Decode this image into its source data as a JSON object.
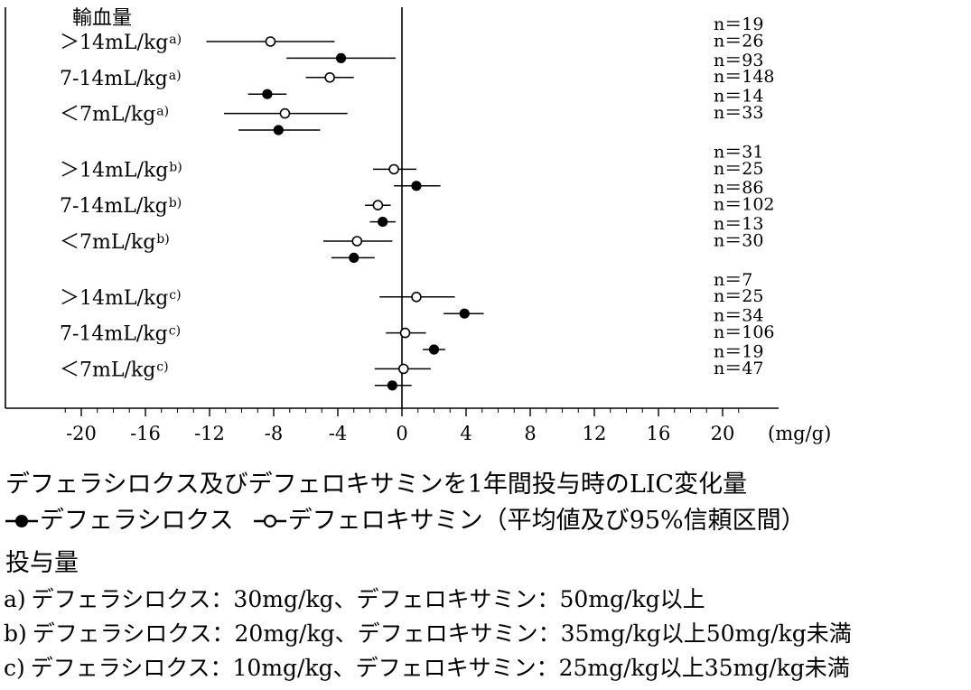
{
  "chart_data": {
    "type": "forest",
    "xlabel": "(mg/g)",
    "xlim": [
      -24,
      22
    ],
    "xticks": [
      -20,
      -16,
      -12,
      -8,
      -4,
      0,
      4,
      8,
      12,
      16,
      20
    ],
    "header_label": "輸血量",
    "series": [
      {
        "name": "デフェラシロクス",
        "marker": "filled-circle"
      },
      {
        "name": "デフェロキサミン",
        "marker": "open-circle"
      }
    ],
    "groups": [
      {
        "label": "＞14mL/kg",
        "sup": "a)",
        "rows": [
          {
            "series": "デフェロキサミン",
            "n": "n＝19",
            "mean": -8.2,
            "lo": -12.2,
            "hi": -4.2
          },
          {
            "series": "デフェラシロクス",
            "n": "n＝26",
            "mean": -3.8,
            "lo": -7.2,
            "hi": -0.4
          }
        ]
      },
      {
        "label": "7-14mL/kg",
        "sup": "a)",
        "rows": [
          {
            "series": "デフェロキサミン",
            "n": "n＝93",
            "mean": -4.5,
            "lo": -6.0,
            "hi": -3.0
          },
          {
            "series": "デフェラシロクス",
            "n": "n＝148",
            "mean": -8.4,
            "lo": -9.6,
            "hi": -7.2
          }
        ]
      },
      {
        "label": "＜7mL/kg",
        "sup": "a)",
        "rows": [
          {
            "series": "デフェロキサミン",
            "n": "n＝14",
            "mean": -7.3,
            "lo": -11.1,
            "hi": -3.4
          },
          {
            "series": "デフェラシロクス",
            "n": "n＝33",
            "mean": -7.7,
            "lo": -10.2,
            "hi": -5.1
          }
        ]
      },
      {
        "label": "＞14mL/kg",
        "sup": "b)",
        "rows": [
          {
            "series": "デフェロキサミン",
            "n": "n＝31",
            "mean": -0.5,
            "lo": -1.8,
            "hi": 0.9
          },
          {
            "series": "デフェラシロクス",
            "n": "n＝25",
            "mean": 0.9,
            "lo": -0.5,
            "hi": 2.4
          }
        ]
      },
      {
        "label": "7-14mL/kg",
        "sup": "b)",
        "rows": [
          {
            "series": "デフェロキサミン",
            "n": "n＝86",
            "mean": -1.5,
            "lo": -2.3,
            "hi": -0.7
          },
          {
            "series": "デフェラシロクス",
            "n": "n＝102",
            "mean": -1.2,
            "lo": -2.0,
            "hi": -0.4
          }
        ]
      },
      {
        "label": "＜7mL/kg",
        "sup": "b)",
        "rows": [
          {
            "series": "デフェロキサミン",
            "n": "n＝13",
            "mean": -2.8,
            "lo": -4.9,
            "hi": -0.6
          },
          {
            "series": "デフェラシロクス",
            "n": "n＝30",
            "mean": -3.0,
            "lo": -4.4,
            "hi": -1.7
          }
        ]
      },
      {
        "label": "＞14mL/kg",
        "sup": "c)",
        "rows": [
          {
            "series": "デフェロキサミン",
            "n": "n＝7",
            "mean": 0.9,
            "lo": -1.4,
            "hi": 3.3
          },
          {
            "series": "デフェラシロクス",
            "n": "n＝25",
            "mean": 3.9,
            "lo": 2.6,
            "hi": 5.1
          }
        ]
      },
      {
        "label": "7-14mL/kg",
        "sup": "c)",
        "rows": [
          {
            "series": "デフェロキサミン",
            "n": "n＝34",
            "mean": 0.2,
            "lo": -1.0,
            "hi": 1.5
          },
          {
            "series": "デフェラシロクス",
            "n": "n＝106",
            "mean": 2.0,
            "lo": 1.3,
            "hi": 2.7
          }
        ]
      },
      {
        "label": "＜7mL/kg",
        "sup": "c)",
        "rows": [
          {
            "series": "デフェロキサミン",
            "n": "n＝19",
            "mean": 0.1,
            "lo": -1.7,
            "hi": 1.8
          },
          {
            "series": "デフェラシロクス",
            "n": "n＝47",
            "mean": -0.6,
            "lo": -1.7,
            "hi": 0.6
          }
        ]
      }
    ]
  },
  "caption": {
    "title": "デフェラシロクス及びデフェロキサミンを1年間投与時のLIC変化量",
    "legend_deferasirox": "デフェラシロクス",
    "legend_deferoxamine": "デフェロキサミン（平均値及び95%信頼区間）",
    "dose_heading": "投与量",
    "doses": [
      {
        "tag": "a)",
        "text": "デフェラシロクス：30mg/kg、デフェロキサミン：50mg/kg以上"
      },
      {
        "tag": "b)",
        "text": "デフェラシロクス：20mg/kg、デフェロキサミン：35mg/kg以上50mg/kg未満"
      },
      {
        "tag": "c)",
        "text": "デフェラシロクス：10mg/kg、デフェロキサミン：25mg/kg以上35mg/kg未満"
      }
    ]
  },
  "colors": {
    "ink": "#000000",
    "background": "#ffffff"
  }
}
